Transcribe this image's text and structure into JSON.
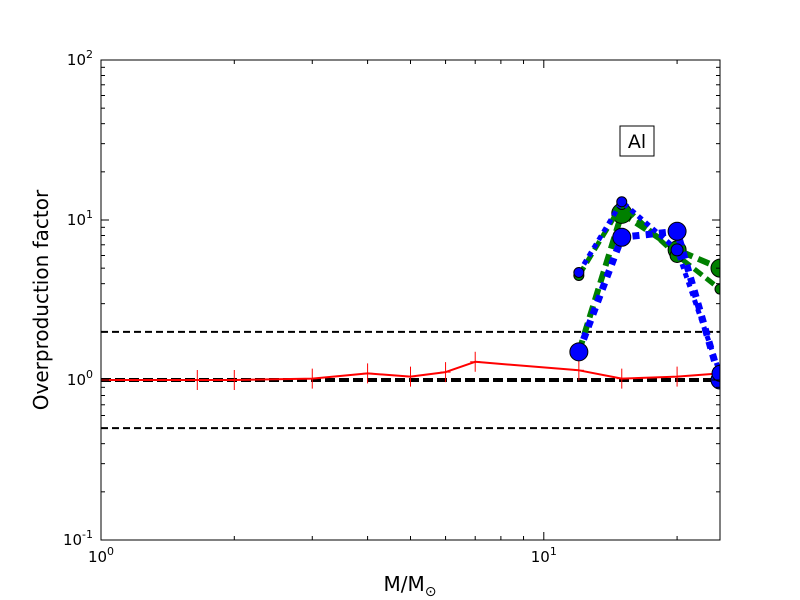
{
  "chart_data": {
    "type": "line",
    "xlabel": "M/M",
    "xlabel_sub": "⊙",
    "ylabel": "Overproduction factor",
    "xscale": "log",
    "yscale": "log",
    "xlim": [
      1,
      25
    ],
    "ylim": [
      0.1,
      100
    ],
    "x_ticks": [
      {
        "value": 1,
        "base": "10",
        "exp": "0"
      },
      {
        "value": 10,
        "base": "10",
        "exp": "1"
      }
    ],
    "y_ticks": [
      {
        "value": 0.1,
        "base": "10",
        "exp": "-1"
      },
      {
        "value": 1,
        "base": "10",
        "exp": "0"
      },
      {
        "value": 10,
        "base": "10",
        "exp": "1"
      },
      {
        "value": 100,
        "base": "10",
        "exp": "2"
      }
    ],
    "annotation": "Al",
    "reference_lines": [
      {
        "y": 0.5,
        "style": "dashed",
        "color": "#000000",
        "width": 2
      },
      {
        "y": 1.0,
        "style": "dashed",
        "color": "#000000",
        "width": 4
      },
      {
        "y": 2.0,
        "style": "dashed",
        "color": "#000000",
        "width": 2
      }
    ],
    "series": [
      {
        "style": "solid",
        "color": "#ff0000",
        "width": 2,
        "marker": "plus",
        "x": [
          1,
          1.65,
          2,
          3,
          4,
          5,
          6,
          7,
          12,
          15,
          20,
          25
        ],
        "y": [
          1.0,
          1.0,
          1.0,
          1.02,
          1.1,
          1.05,
          1.12,
          1.3,
          1.15,
          1.02,
          1.05,
          1.1
        ]
      },
      {
        "style": "dashed",
        "color": "#008000",
        "width": 6,
        "marker": "circle",
        "x": [
          12,
          15,
          20,
          25
        ],
        "y": [
          1.5,
          11.0,
          6.5,
          5.0
        ],
        "marker_sizes": [
          0,
          10,
          9,
          9
        ]
      },
      {
        "style": "dashed",
        "color": "#008000",
        "width": 5,
        "marker": "circle",
        "x": [
          12,
          15,
          20,
          25
        ],
        "y": [
          4.5,
          12.5,
          6.0,
          3.7
        ],
        "marker_sizes": [
          5,
          5,
          7,
          5
        ]
      },
      {
        "style": "dotted",
        "color": "#0000ff",
        "width": 7,
        "marker": "circle",
        "x": [
          12,
          15,
          20,
          25
        ],
        "y": [
          1.5,
          7.8,
          8.5,
          1.0
        ],
        "marker_sizes": [
          9,
          9,
          9,
          9
        ]
      },
      {
        "style": "dotted",
        "color": "#0000ff",
        "width": 5,
        "marker": "circle",
        "x": [
          12,
          15,
          20,
          25
        ],
        "y": [
          4.7,
          13.0,
          6.5,
          1.1
        ],
        "marker_sizes": [
          5,
          5,
          6,
          8
        ]
      }
    ]
  }
}
